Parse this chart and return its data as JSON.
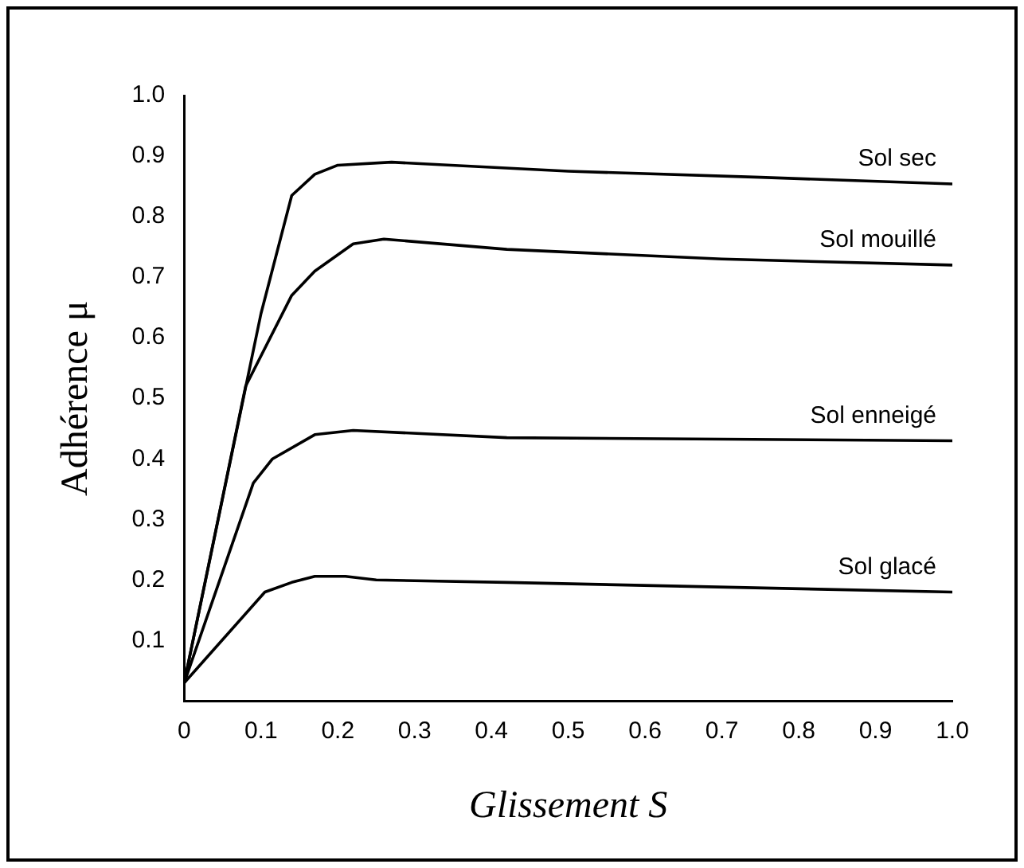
{
  "chart_data": {
    "type": "line",
    "xlabel": "Glissement S",
    "ylabel": "Adhérence μ",
    "xlim": [
      0,
      1
    ],
    "ylim": [
      0,
      1
    ],
    "xticks": [
      0,
      0.1,
      0.2,
      0.3,
      0.4,
      0.5,
      0.6,
      0.7,
      0.8,
      0.9,
      {
        "value": 1,
        "label": "1.0"
      }
    ],
    "yticks": [
      0.1,
      0.2,
      0.3,
      0.4,
      0.5,
      0.6,
      0.7,
      0.8,
      0.9,
      {
        "value": 1,
        "label": "1.0"
      }
    ],
    "grid": false,
    "legend": false,
    "marker": "none",
    "line_style": "solid",
    "series": [
      {
        "name": "Sol sec",
        "color": "#000000",
        "x": [
          0,
          0.1,
          0.14,
          0.17,
          0.2,
          0.27,
          0.5,
          0.75,
          1
        ],
        "values": [
          0.03,
          0.64,
          0.835,
          0.87,
          0.885,
          0.89,
          0.875,
          0.865,
          0.854
        ]
      },
      {
        "name": "Sol mouillé",
        "color": "#000000",
        "x": [
          0,
          0.08,
          0.14,
          0.17,
          0.22,
          0.26,
          0.42,
          0.7,
          1
        ],
        "values": [
          0.03,
          0.52,
          0.67,
          0.71,
          0.755,
          0.763,
          0.746,
          0.73,
          0.72
        ]
      },
      {
        "name": "Sol enneigé",
        "color": "#000000",
        "x": [
          0,
          0.09,
          0.115,
          0.17,
          0.22,
          0.42,
          1
        ],
        "values": [
          0.03,
          0.36,
          0.4,
          0.44,
          0.447,
          0.435,
          0.43
        ]
      },
      {
        "name": "Sol glacé",
        "color": "#000000",
        "x": [
          0,
          0.105,
          0.14,
          0.17,
          0.21,
          0.25,
          0.42,
          1
        ],
        "values": [
          0.03,
          0.18,
          0.196,
          0.206,
          0.206,
          0.2,
          0.196,
          0.18
        ]
      }
    ]
  }
}
